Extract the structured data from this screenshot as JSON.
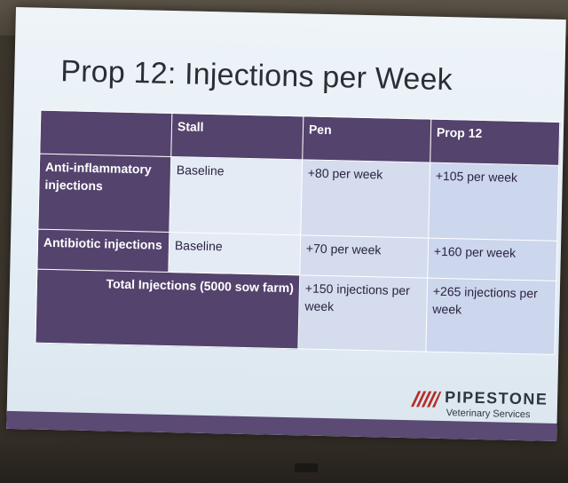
{
  "slide": {
    "title": "Prop 12: Injections per Week"
  },
  "table": {
    "headers": [
      "",
      "Stall",
      "Pen",
      "Prop 12"
    ],
    "rows": [
      {
        "label": "Anti-inflammatory injections",
        "stall": "Baseline",
        "pen": "+80 per week",
        "prop12": "+105 per week"
      },
      {
        "label": "Antibiotic injections",
        "stall": "Baseline",
        "pen": "+70 per week",
        "prop12": "+160 per week"
      }
    ],
    "total": {
      "label": "Total Injections (5000 sow farm)",
      "pen": "+150 injections per week",
      "prop12": "+265 injections per week"
    }
  },
  "logo": {
    "name": "PIPESTONE",
    "subtitle": "Veterinary Services",
    "color": "#b5302a"
  }
}
